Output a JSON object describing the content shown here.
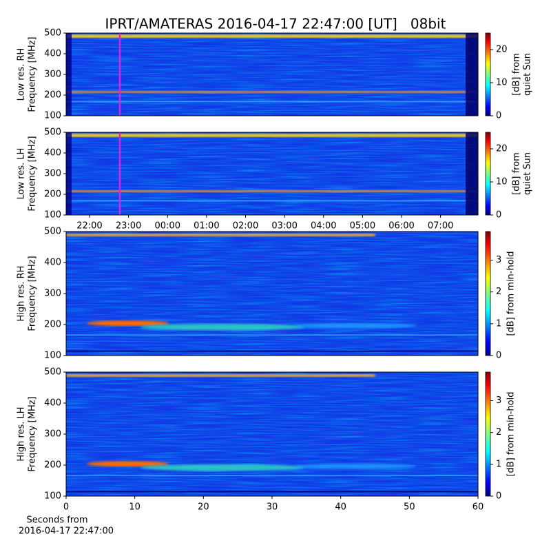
{
  "title": "IPRT/AMATERAS 2016-04-17 22:47:00 [UT]   08bit",
  "chart_data": [
    {
      "type": "heatmap",
      "ylabel": [
        "Low res. RH",
        "Frequency [MHz]"
      ],
      "xlim": [
        21.4,
        31.96
      ],
      "ylim": [
        100,
        500
      ],
      "yticks": [
        100,
        200,
        300,
        400,
        500
      ],
      "colorbar_label": [
        "[dB] from",
        "quiet Sun"
      ],
      "clim": [
        0,
        25
      ],
      "cticks": [
        0,
        10,
        20
      ]
    },
    {
      "type": "heatmap",
      "ylabel": [
        "Low res. LH",
        "Frequency [MHz]"
      ],
      "xlim": [
        21.4,
        31.96
      ],
      "ylim": [
        100,
        500
      ],
      "yticks": [
        100,
        200,
        300,
        400,
        500
      ],
      "xticks": [
        {
          "value": 22,
          "label": "22:00"
        },
        {
          "value": 23,
          "label": "23:00"
        },
        {
          "value": 24,
          "label": "00:00"
        },
        {
          "value": 25,
          "label": "01:00"
        },
        {
          "value": 26,
          "label": "02:00"
        },
        {
          "value": 27,
          "label": "03:00"
        },
        {
          "value": 28,
          "label": "04:00"
        },
        {
          "value": 29,
          "label": "05:00"
        },
        {
          "value": 30,
          "label": "06:00"
        },
        {
          "value": 31,
          "label": "07:00"
        }
      ],
      "colorbar_label": [
        "[dB] from",
        "quiet Sun"
      ],
      "clim": [
        0,
        25
      ],
      "cticks": [
        0,
        10,
        20
      ]
    },
    {
      "type": "heatmap",
      "ylabel": [
        "High res. RH",
        "Frequency [MHz]"
      ],
      "xlim": [
        0,
        60
      ],
      "ylim": [
        100,
        500
      ],
      "yticks": [
        100,
        200,
        300,
        400,
        500
      ],
      "colorbar_label": [
        "[dB] from min-hold"
      ],
      "clim": [
        0,
        3.9
      ],
      "cticks": [
        0,
        1,
        2,
        3
      ]
    },
    {
      "type": "heatmap",
      "ylabel": [
        "High res. LH",
        "Frequency [MHz]"
      ],
      "xlim": [
        0,
        60
      ],
      "ylim": [
        100,
        500
      ],
      "yticks": [
        100,
        200,
        300,
        400,
        500
      ],
      "xticks": [
        0,
        10,
        20,
        30,
        40,
        50,
        60
      ],
      "xlabel": [
        "Seconds from",
        "2016-04-17 22:47:00"
      ],
      "colorbar_label": [
        "[dB] from min-hold"
      ],
      "clim": [
        0,
        3.9
      ],
      "cticks": [
        0,
        1,
        2,
        3
      ]
    }
  ]
}
